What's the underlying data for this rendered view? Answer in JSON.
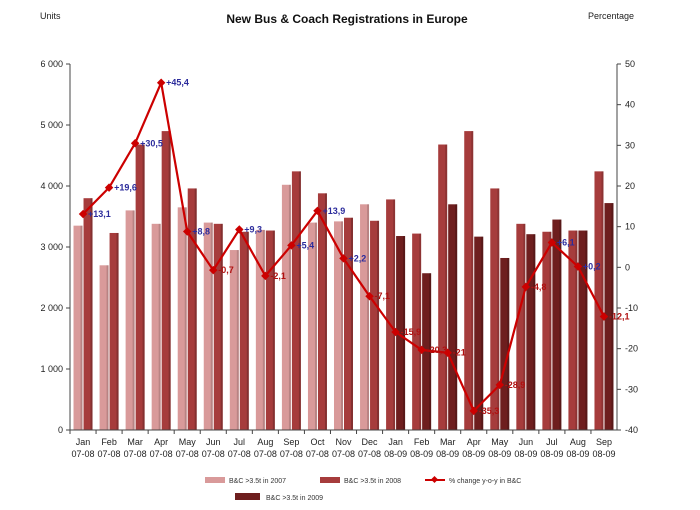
{
  "chart_data": {
    "type": "bar",
    "title": "New Bus & Coach Registrations in Europe",
    "left_axis_label": "Units",
    "right_axis_label": "Percentage",
    "categories": [
      {
        "month": "Jan",
        "period": "07-08"
      },
      {
        "month": "Feb",
        "period": "07-08"
      },
      {
        "month": "Mar",
        "period": "07-08"
      },
      {
        "month": "Apr",
        "period": "07-08"
      },
      {
        "month": "May",
        "period": "07-08"
      },
      {
        "month": "Jun",
        "period": "07-08"
      },
      {
        "month": "Jul",
        "period": "07-08"
      },
      {
        "month": "Aug",
        "period": "07-08"
      },
      {
        "month": "Sep",
        "period": "07-08"
      },
      {
        "month": "Oct",
        "period": "07-08"
      },
      {
        "month": "Nov",
        "period": "07-08"
      },
      {
        "month": "Dec",
        "period": "07-08"
      },
      {
        "month": "Jan",
        "period": "08-09"
      },
      {
        "month": "Feb",
        "period": "08-09"
      },
      {
        "month": "Mar",
        "period": "08-09"
      },
      {
        "month": "Apr",
        "period": "08-09"
      },
      {
        "month": "May",
        "period": "08-09"
      },
      {
        "month": "Jun",
        "period": "08-09"
      },
      {
        "month": "Jul",
        "period": "08-09"
      },
      {
        "month": "Aug",
        "period": "08-09"
      },
      {
        "month": "Sep",
        "period": "08-09"
      }
    ],
    "series": [
      {
        "name": "B&C >3.5t in 2007",
        "axis": "left",
        "color": "#d99a9a",
        "values": [
          3350,
          2700,
          3600,
          3380,
          3650,
          3400,
          2950,
          3280,
          4020,
          3400,
          3420,
          3700,
          null,
          null,
          null,
          null,
          null,
          null,
          null,
          null,
          null
        ]
      },
      {
        "name": "B&C >3.5t in 2008",
        "axis": "left",
        "color": "#a63c3c",
        "values": [
          3800,
          3230,
          4680,
          4900,
          3960,
          3380,
          3250,
          3270,
          4240,
          3880,
          3480,
          3430,
          3780,
          3220,
          4680,
          4900,
          3960,
          3380,
          3250,
          3270,
          4240
        ]
      },
      {
        "name": "B&C >3.5t in 2009",
        "axis": "left",
        "color": "#6e1e1e",
        "values": [
          null,
          null,
          null,
          null,
          null,
          null,
          null,
          null,
          null,
          null,
          null,
          null,
          3180,
          2570,
          3700,
          3170,
          2820,
          3210,
          3450,
          3270,
          3720
        ]
      },
      {
        "name": "% change y-o-y in B&C",
        "axis": "right",
        "color": "#cc0000",
        "values": [
          13.1,
          19.6,
          30.5,
          45.4,
          8.8,
          -0.7,
          9.3,
          -2.1,
          5.4,
          13.9,
          2.2,
          -7.1,
          -15.9,
          -20.3,
          -21.0,
          -35.3,
          -28.9,
          -4.8,
          6.1,
          0.2,
          -12.1
        ],
        "labels": [
          "+13,1",
          "+19,6",
          "+30,5",
          "+45,4",
          "+8,8",
          "-0,7",
          "+9,3",
          "-2,1",
          "+5,4",
          "+13,9",
          "+2,2",
          "-7,1",
          "-15,9",
          "-20,3",
          "-21",
          "-35,3",
          "-28,9",
          "-4,8",
          "+6,1",
          "+0,2",
          "-12,1"
        ]
      }
    ],
    "y_left": {
      "min": 0,
      "max": 6000,
      "ticks": [
        "0",
        "1 000",
        "2 000",
        "3 000",
        "4 000",
        "5 000",
        "6 000"
      ]
    },
    "y_right": {
      "min": -40,
      "max": 50,
      "ticks": [
        "-40",
        "-30",
        "-20",
        "-10",
        "0",
        "10",
        "20",
        "30",
        "40",
        "50"
      ]
    },
    "grid": false,
    "legend_position": "bottom"
  }
}
